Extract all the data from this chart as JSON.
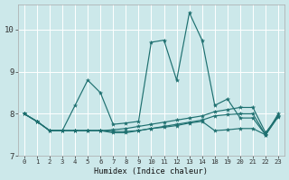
{
  "xlabel": "Humidex (Indice chaleur)",
  "bg_color": "#cce8ea",
  "grid_color": "#ffffff",
  "line_color": "#1e7070",
  "x_indices": [
    0,
    1,
    2,
    3,
    4,
    5,
    6,
    7,
    8,
    9,
    10,
    11,
    12,
    13,
    14,
    15,
    16,
    17,
    18,
    19,
    20
  ],
  "xtick_labels": [
    "0",
    "1",
    "2",
    "3",
    "4",
    "5",
    "6",
    "7",
    "8",
    "9",
    "10",
    "11",
    "12",
    "13",
    "14",
    "18",
    "19",
    "20",
    "21",
    "22",
    "23"
  ],
  "ylim": [
    7.0,
    10.6
  ],
  "yticks": [
    7,
    8,
    9,
    10
  ],
  "line1_y": [
    8.0,
    7.82,
    7.6,
    7.6,
    8.2,
    8.8,
    8.5,
    7.75,
    7.78,
    7.82,
    9.7,
    9.75,
    8.8,
    10.4,
    9.75,
    8.2,
    8.35,
    7.9,
    7.9,
    7.5,
    8.0
  ],
  "line2_y": [
    8.0,
    7.82,
    7.6,
    7.6,
    7.6,
    7.6,
    7.6,
    7.62,
    7.65,
    7.7,
    7.75,
    7.8,
    7.85,
    7.9,
    7.95,
    8.05,
    8.1,
    8.15,
    8.15,
    7.55,
    7.95
  ],
  "line3_y": [
    8.0,
    7.82,
    7.6,
    7.6,
    7.6,
    7.6,
    7.6,
    7.58,
    7.58,
    7.6,
    7.65,
    7.7,
    7.75,
    7.8,
    7.85,
    7.95,
    7.98,
    8.0,
    8.0,
    7.5,
    7.95
  ],
  "line4_y": [
    8.0,
    7.82,
    7.6,
    7.6,
    7.6,
    7.6,
    7.6,
    7.55,
    7.55,
    7.6,
    7.65,
    7.68,
    7.72,
    7.78,
    7.82,
    7.6,
    7.62,
    7.65,
    7.65,
    7.5,
    7.93
  ]
}
